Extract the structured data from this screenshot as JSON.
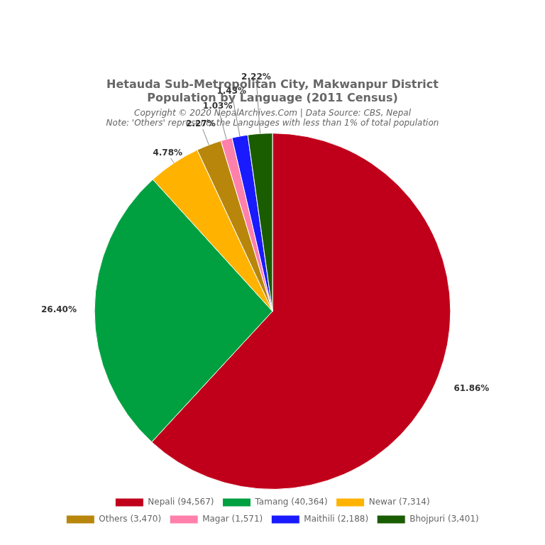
{
  "chart_data": {
    "type": "pie",
    "title": [
      "Hetauda Sub-Metropolitan City, Makwanpur District",
      "Population by Language (2011 Census)"
    ],
    "subtitle": [
      "Copyright © 2020 NepalArchives.Com | Data Source: CBS, Nepal",
      "Note: 'Others' represents the Languages with less than 1% of total population"
    ],
    "categories": [
      "Nepali (94,567)",
      "Tamang (40,364)",
      "Newar (7,314)",
      "Others (3,470)",
      "Magar (1,571)",
      "Maithili (2,188)",
      "Bhojpuri (3,401)"
    ],
    "values": [
      61.86,
      26.4,
      4.78,
      2.27,
      1.03,
      1.43,
      2.22
    ],
    "value_labels": [
      "61.86%",
      "26.40%",
      "4.78%",
      "2.27%",
      "1.03%",
      "1.43%",
      "2.22%"
    ],
    "colors": [
      "#c0001a",
      "#00a040",
      "#ffb300",
      "#b8860b",
      "#ff80ab",
      "#1a1aff",
      "#1a5c00"
    ],
    "data_labels": true,
    "legend": "bottom"
  }
}
